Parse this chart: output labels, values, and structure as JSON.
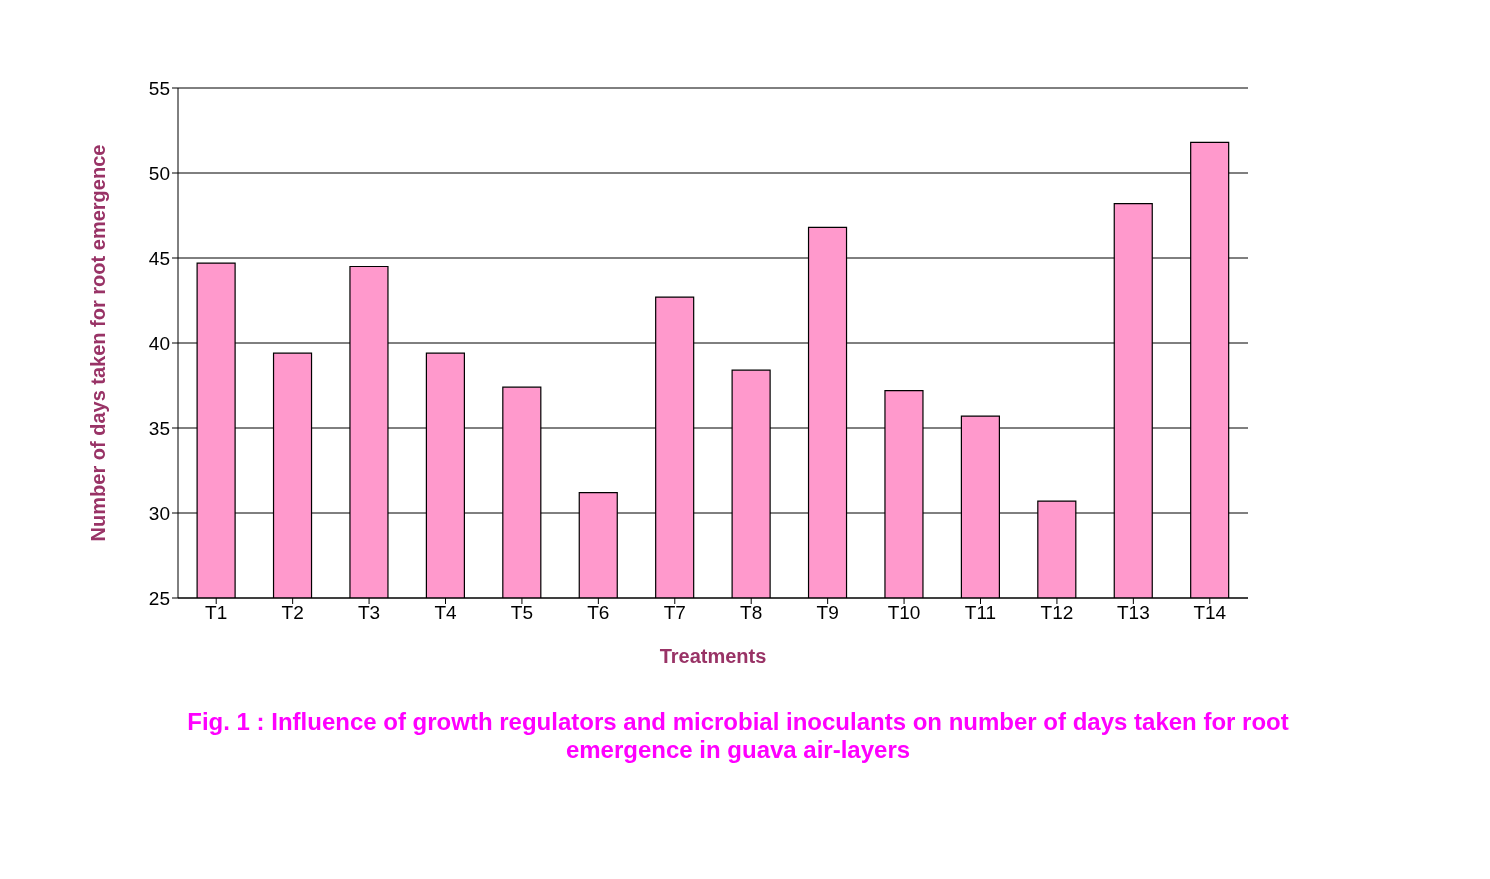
{
  "chart_data": {
    "type": "bar",
    "title": "Fig. 1 : Influence of growth regulators and microbial inoculants on number of days taken for root emergence in guava air-layers",
    "xlabel": "Treatments",
    "ylabel": "Number of days taken for root emergence",
    "categories": [
      "T1",
      "T2",
      "T3",
      "T4",
      "T5",
      "T6",
      "T7",
      "T8",
      "T9",
      "T10",
      "T11",
      "T12",
      "T13",
      "T14"
    ],
    "values": [
      44.7,
      39.4,
      44.5,
      39.4,
      37.4,
      31.2,
      42.7,
      38.4,
      46.8,
      37.2,
      35.7,
      30.7,
      48.2,
      51.8
    ],
    "color": "#ff99cc",
    "ylim": [
      25,
      55
    ],
    "yticks": [
      25,
      30,
      35,
      40,
      45,
      50,
      55
    ],
    "grid": "y"
  }
}
